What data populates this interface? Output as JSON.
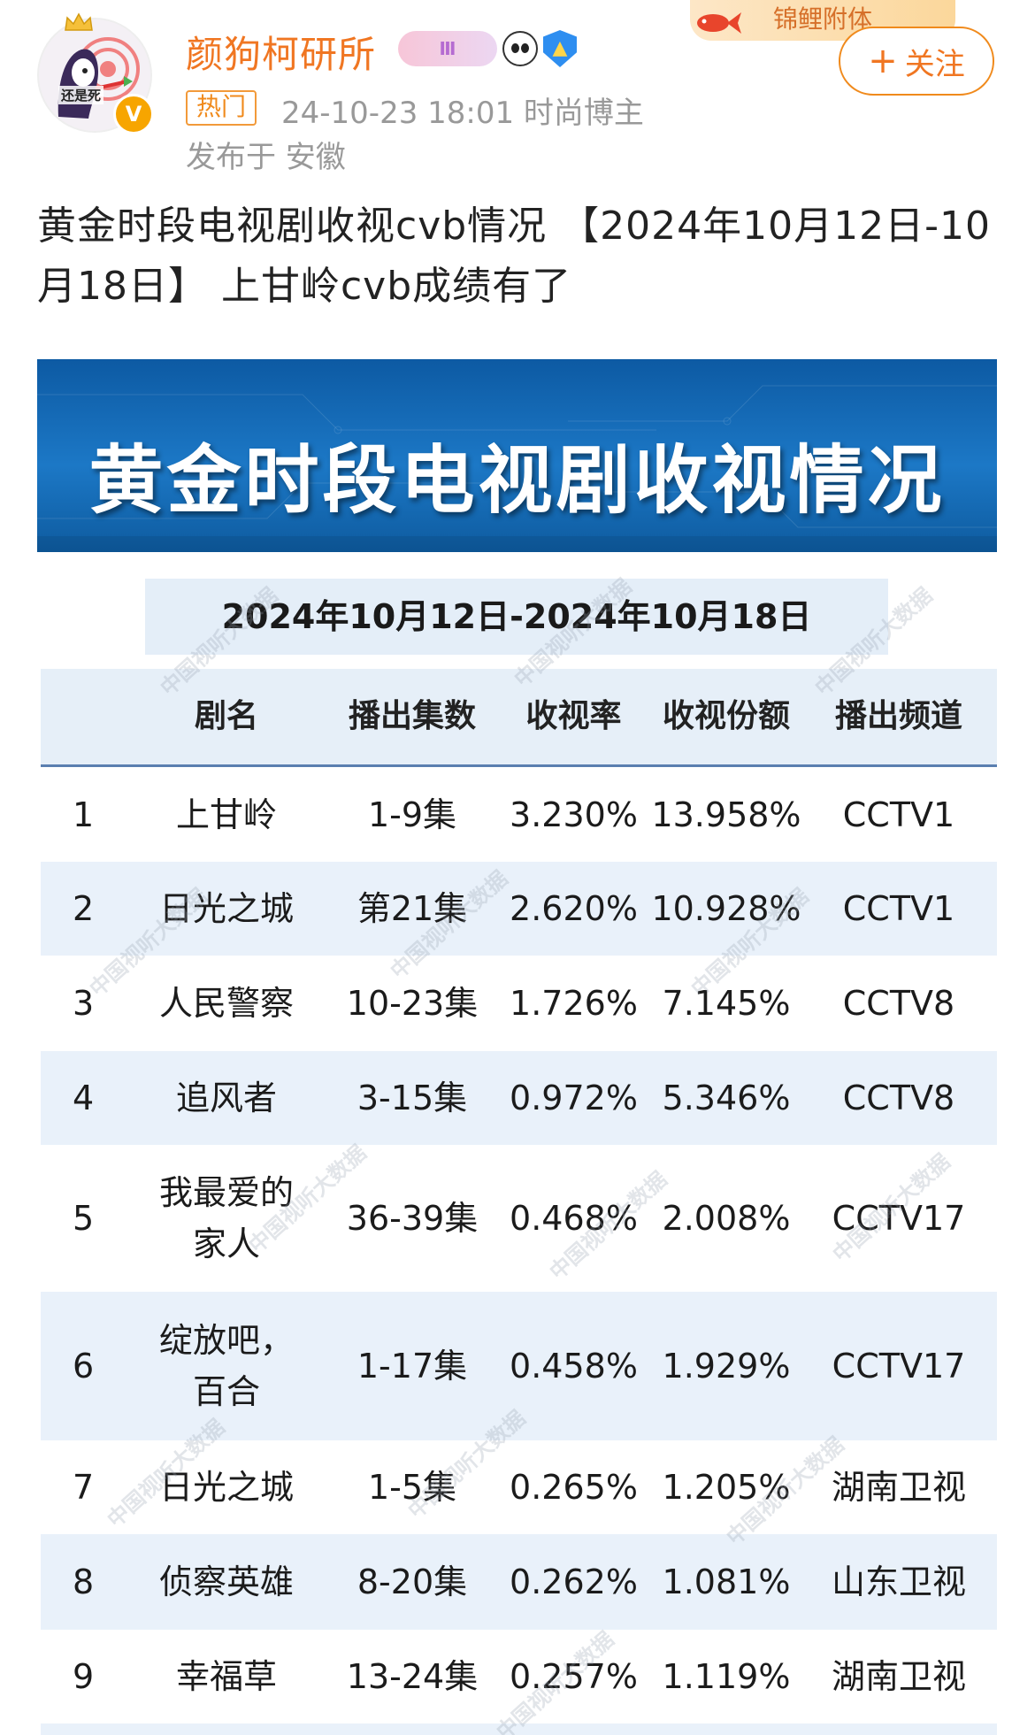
{
  "header": {
    "avatar_caption": "还是死",
    "verified_mark": "V",
    "username": "颜狗柯研所",
    "level_badge": "Ⅲ",
    "hot_tag": "热门",
    "meta": "24-10-23 18:01  时尚博主",
    "location": "发布于 安徽",
    "banner_text": "锦鲤附体",
    "follow_label": "关注",
    "follow_plus": "+"
  },
  "post": {
    "text": "黄金时段电视剧收视cvb情况 【2024年10月12日-10月18日】 上甘岭cvb成绩有了"
  },
  "image": {
    "title": "黄金时段电视剧收视情况",
    "date_range": "2024年10月12日-2024年10月18日",
    "watermark": "中国视听大数据",
    "columns": [
      "",
      "剧名",
      "播出集数",
      "收视率",
      "收视份额",
      "播出频道"
    ],
    "rows": [
      {
        "rank": "1",
        "name": "上甘岭",
        "episodes": "1-9集",
        "rating": "3.230%",
        "share": "13.958%",
        "channel": "CCTV1"
      },
      {
        "rank": "2",
        "name": "日光之城",
        "episodes": "第21集",
        "rating": "2.620%",
        "share": "10.928%",
        "channel": "CCTV1"
      },
      {
        "rank": "3",
        "name": "人民警察",
        "episodes": "10-23集",
        "rating": "1.726%",
        "share": "7.145%",
        "channel": "CCTV8"
      },
      {
        "rank": "4",
        "name": "追风者",
        "episodes": "3-15集",
        "rating": "0.972%",
        "share": "5.346%",
        "channel": "CCTV8"
      },
      {
        "rank": "5",
        "name": "我最爱的\n家人",
        "episodes": "36-39集",
        "rating": "0.468%",
        "share": "2.008%",
        "channel": "CCTV17"
      },
      {
        "rank": "6",
        "name": "绽放吧，\n百合",
        "episodes": "1-17集",
        "rating": "0.458%",
        "share": "1.929%",
        "channel": "CCTV17"
      },
      {
        "rank": "7",
        "name": "日光之城",
        "episodes": "1-5集",
        "rating": "0.265%",
        "share": "1.205%",
        "channel": "湖南卫视"
      },
      {
        "rank": "8",
        "name": "侦察英雄",
        "episodes": "8-20集",
        "rating": "0.262%",
        "share": "1.081%",
        "channel": "山东卫视"
      },
      {
        "rank": "9",
        "name": "幸福草",
        "episodes": "13-24集",
        "rating": "0.257%",
        "share": "1.119%",
        "channel": "湖南卫视"
      }
    ]
  }
}
